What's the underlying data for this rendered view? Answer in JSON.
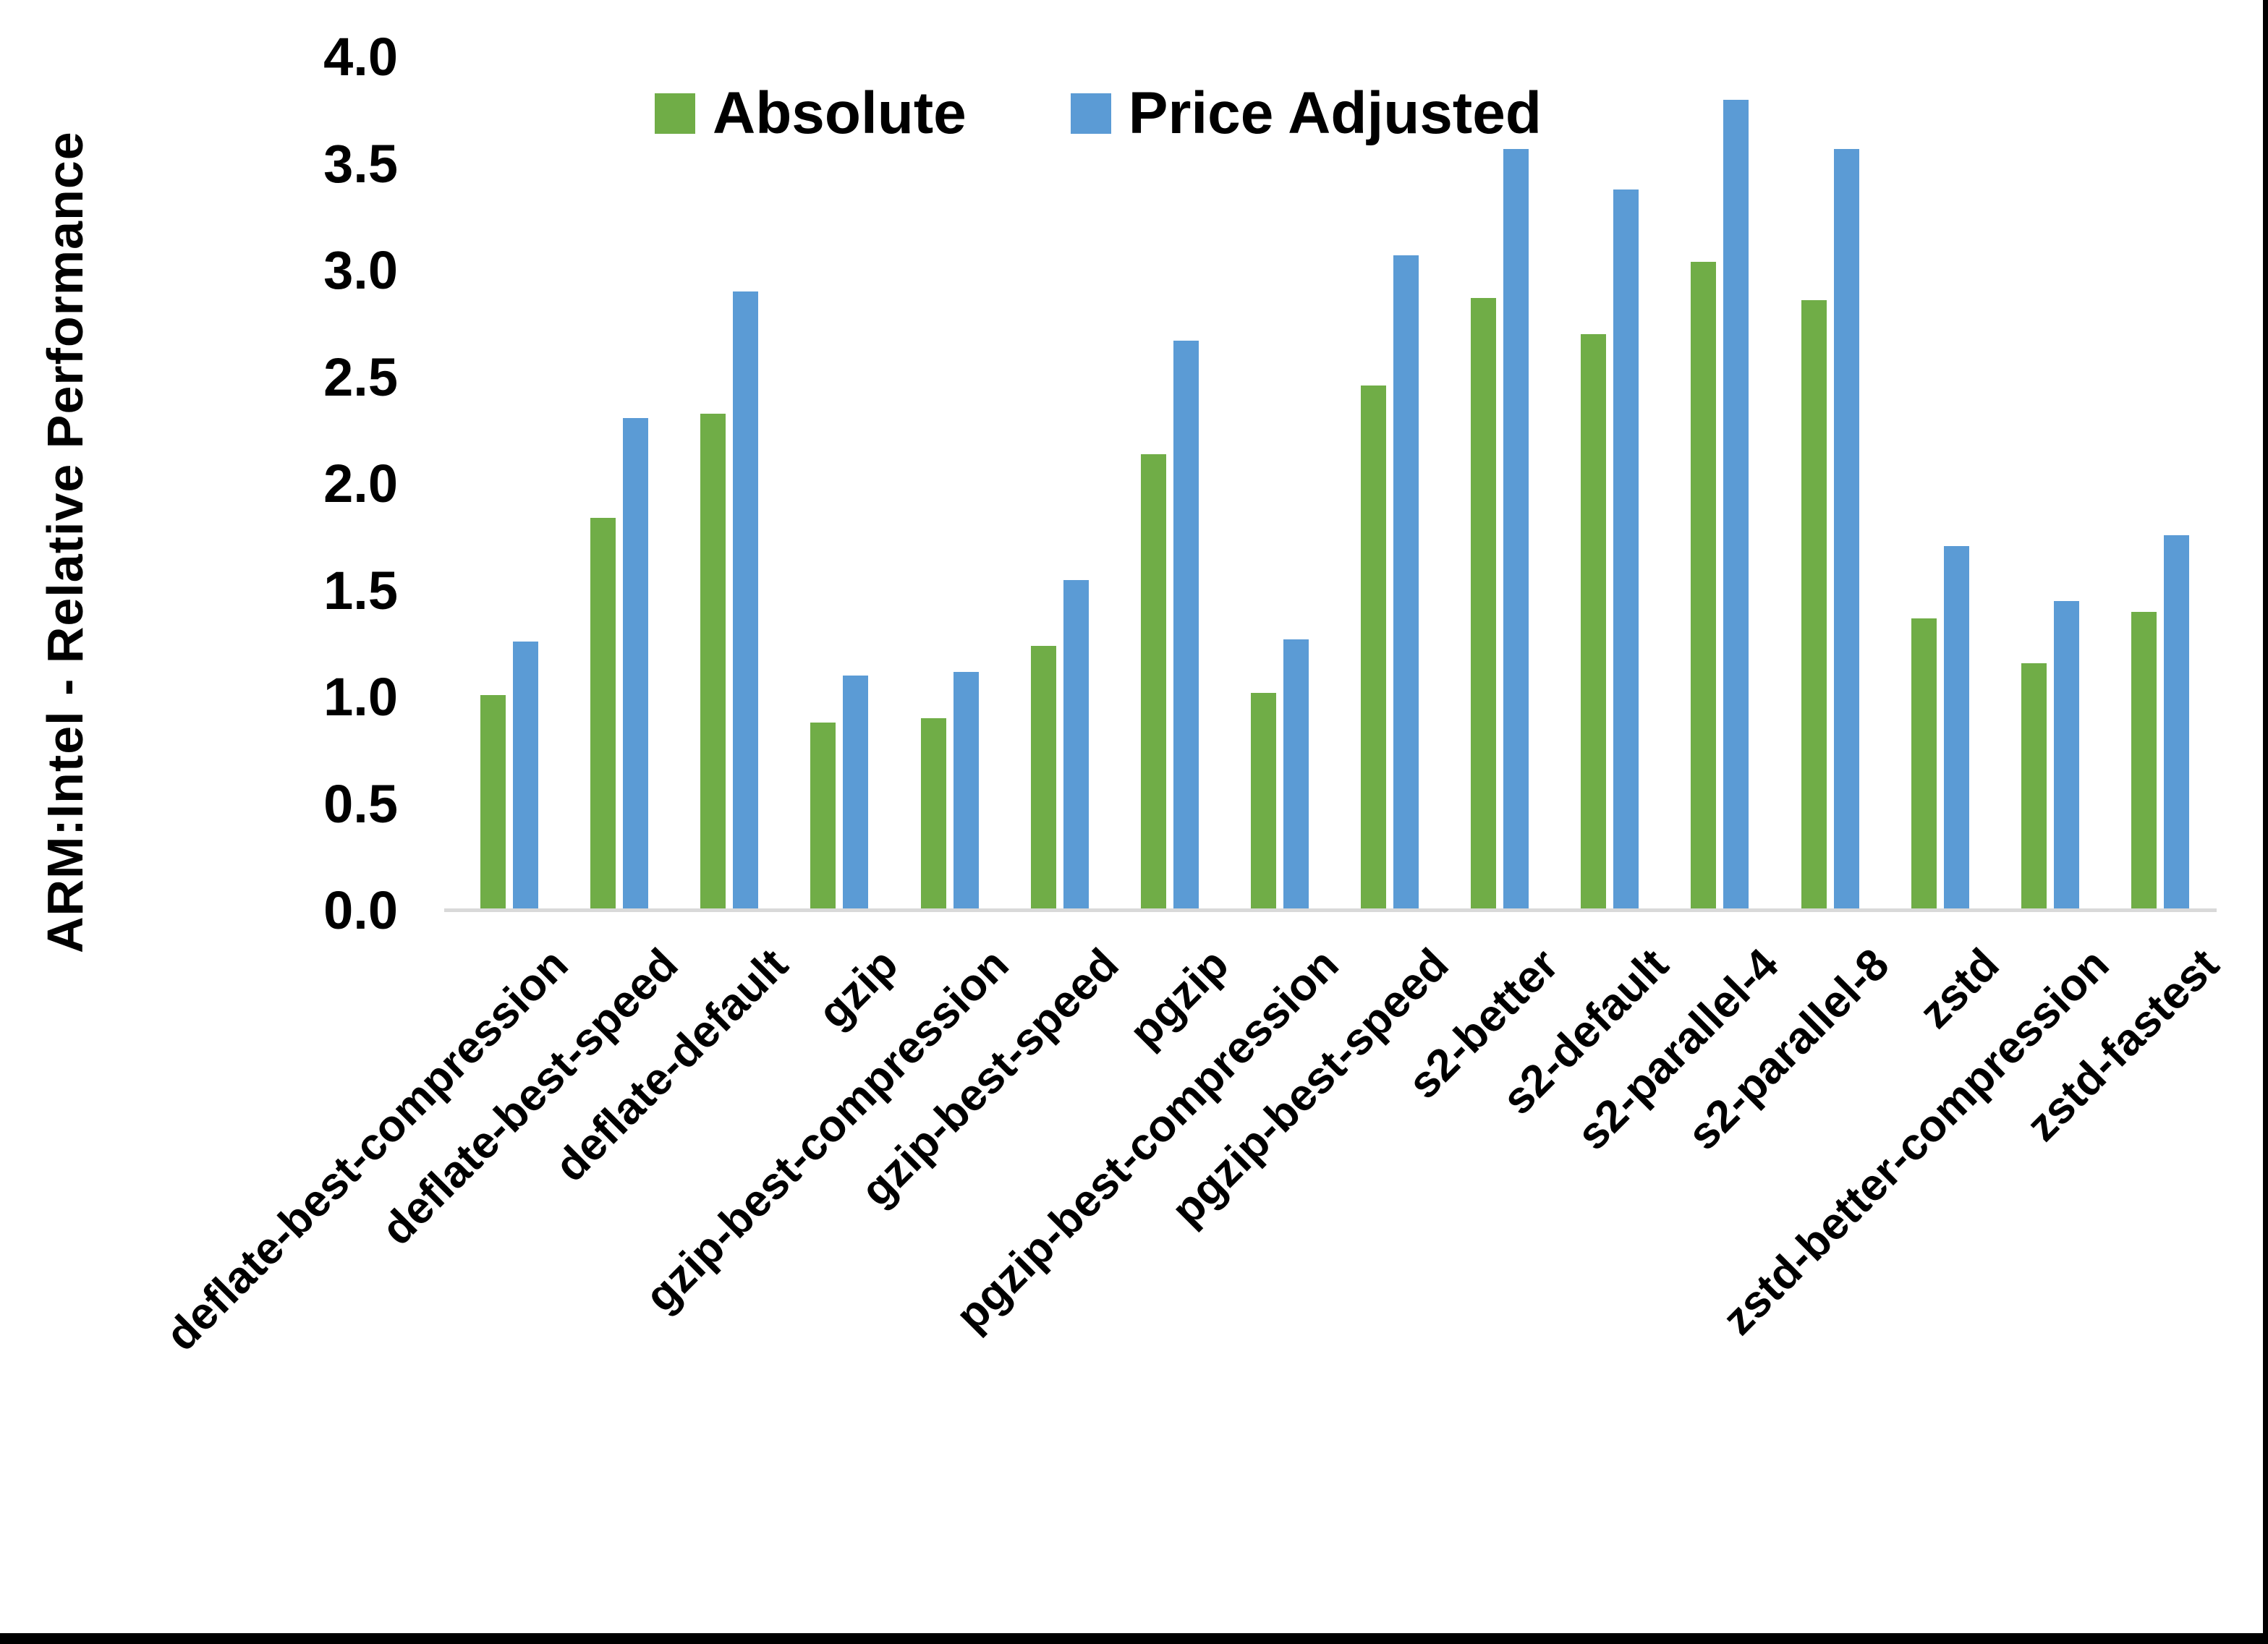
{
  "chart_data": {
    "type": "bar",
    "title": "",
    "ylabel": "ARM:Intel - Relative Performance",
    "xlabel": "",
    "ylim": [
      0.0,
      4.0
    ],
    "ytick_labels": [
      "0.0",
      "0.5",
      "1.0",
      "1.5",
      "2.0",
      "2.5",
      "3.0",
      "3.5",
      "4.0"
    ],
    "grid": false,
    "legend_position": "top",
    "categories": [
      "deflate-best-compression",
      "deflate-best-speed",
      "deflate-default",
      "gzip",
      "gzip-best-compression",
      "gzip-best-speed",
      "pgzip",
      "pgzip-best-compression",
      "pgzip-best-speed",
      "s2-better",
      "s2-default",
      "s2-parallel-4",
      "s2-parallel-8",
      "zstd",
      "zstd-better-compression",
      "zstd-fastest"
    ],
    "series": [
      {
        "name": "Absolute",
        "color": "#70AD47",
        "values": [
          1.01,
          1.84,
          2.33,
          0.88,
          0.9,
          1.24,
          2.14,
          1.02,
          2.46,
          2.87,
          2.7,
          3.04,
          2.86,
          1.37,
          1.16,
          1.4
        ]
      },
      {
        "name": "Price Adjusted",
        "color": "#5B9BD5",
        "values": [
          1.26,
          2.31,
          2.9,
          1.1,
          1.12,
          1.55,
          2.67,
          1.27,
          3.07,
          3.57,
          3.38,
          3.8,
          3.57,
          1.71,
          1.45,
          1.76
        ]
      }
    ],
    "axis_line_color": "#D9D9D9"
  }
}
